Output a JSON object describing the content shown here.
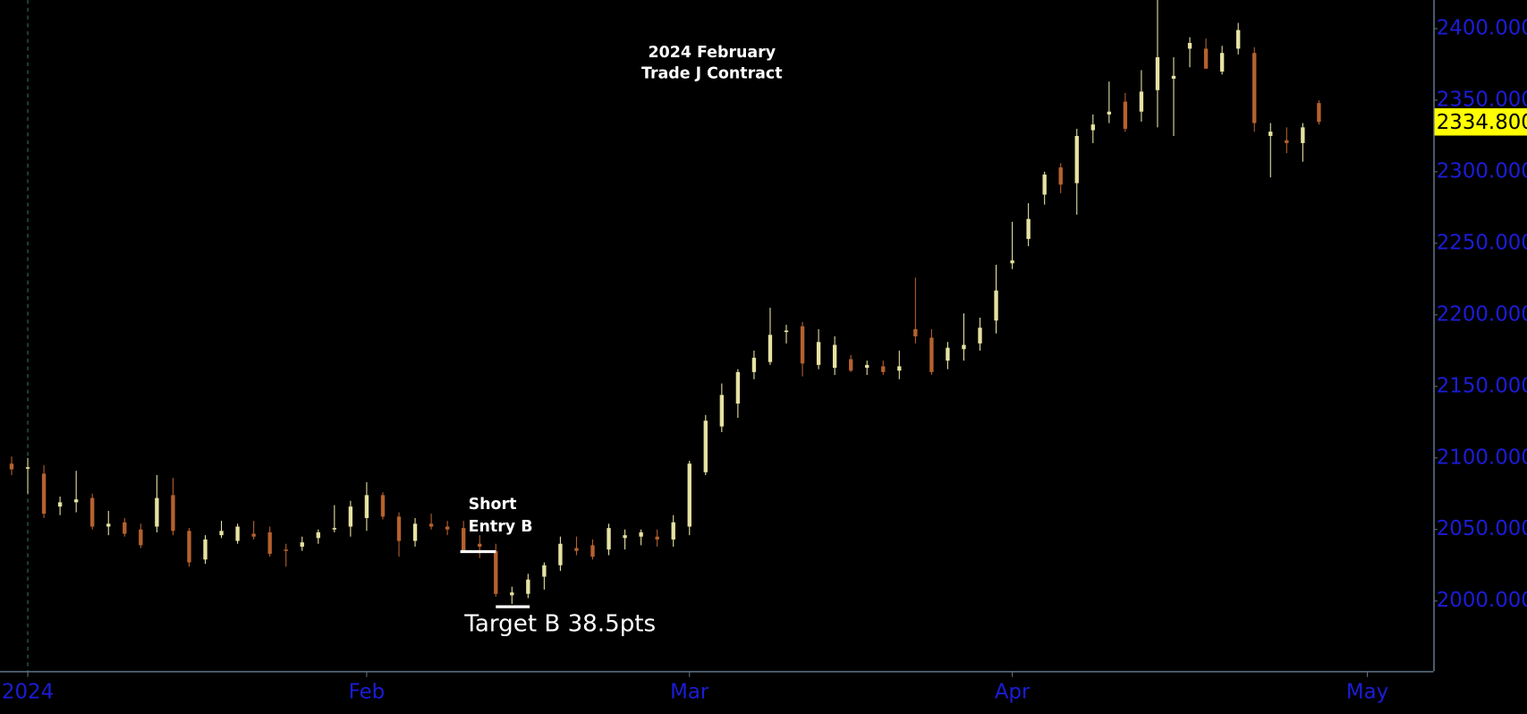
{
  "chart_data": {
    "type": "candlestick",
    "title": "2024 February",
    "subtitle": "Trade J Contract",
    "open": [
      2096,
      2093,
      2089,
      2066,
      2069,
      2072,
      2052,
      2055,
      2050,
      2052,
      2074,
      2049,
      2029,
      2046,
      2042,
      2047,
      2048,
      2036,
      2038,
      2044,
      2050,
      2052,
      2058,
      2074,
      2059,
      2042,
      2054,
      2052,
      2051,
      2040,
      2035,
      2004,
      2005,
      2017,
      2025,
      2037,
      2039,
      2036,
      2044,
      2045,
      2045,
      2043,
      2052,
      2090,
      2122,
      2138,
      2160,
      2167,
      2188,
      2192,
      2165,
      2163,
      2169,
      2163,
      2164,
      2161,
      2190,
      2184,
      2168,
      2176,
      2180,
      2196,
      2236,
      2253,
      2284,
      2303,
      2292,
      2329,
      2340,
      2349,
      2342,
      2357,
      2365,
      2386,
      2386,
      2370,
      2386,
      2383,
      2325,
      2322,
      2320,
      2348
    ],
    "high": [
      2101,
      2100,
      2095,
      2073,
      2091,
      2075,
      2063,
      2058,
      2054,
      2088,
      2086,
      2051,
      2046,
      2056,
      2054,
      2056,
      2052,
      2040,
      2045,
      2050,
      2067,
      2070,
      2083,
      2076,
      2062,
      2058,
      2061,
      2056,
      2056,
      2046,
      2040,
      2010,
      2019,
      2027,
      2045,
      2045,
      2043,
      2054,
      2050,
      2050,
      2050,
      2060,
      2098,
      2130,
      2152,
      2162,
      2175,
      2205,
      2193,
      2195,
      2190,
      2185,
      2172,
      2168,
      2168,
      2175,
      2226,
      2190,
      2181,
      2201,
      2198,
      2235,
      2265,
      2278,
      2300,
      2306,
      2330,
      2340,
      2363,
      2355,
      2371,
      2420,
      2380,
      2394,
      2393,
      2388,
      2404,
      2387,
      2334,
      2331,
      2334,
      2350
    ],
    "low": [
      2088,
      2075,
      2058,
      2060,
      2062,
      2050,
      2046,
      2045,
      2037,
      2048,
      2046,
      2024,
      2026,
      2044,
      2040,
      2043,
      2031,
      2024,
      2035,
      2040,
      2048,
      2045,
      2049,
      2057,
      2031,
      2038,
      2050,
      2046,
      2034,
      2030,
      2003,
      1998,
      2002,
      2008,
      2021,
      2032,
      2029,
      2032,
      2036,
      2039,
      2038,
      2038,
      2046,
      2088,
      2118,
      2128,
      2155,
      2165,
      2180,
      2157,
      2162,
      2158,
      2160,
      2158,
      2158,
      2155,
      2180,
      2158,
      2162,
      2168,
      2175,
      2187,
      2232,
      2248,
      2277,
      2285,
      2270,
      2320,
      2334,
      2328,
      2335,
      2331,
      2325,
      2373,
      2375,
      2368,
      2382,
      2328,
      2296,
      2313,
      2307,
      2333
    ],
    "close": [
      2092,
      2093.5,
      2061,
      2069,
      2071,
      2052,
      2054,
      2047,
      2039,
      2072,
      2049,
      2027,
      2043,
      2049,
      2052,
      2045,
      2033,
      2035,
      2041,
      2048,
      2051,
      2066,
      2074,
      2059,
      2042,
      2054,
      2052,
      2050,
      2035,
      2038,
      2005,
      2006,
      2015,
      2025,
      2040,
      2035,
      2031,
      2051,
      2046,
      2048,
      2043,
      2055,
      2096,
      2126,
      2144,
      2160,
      2170,
      2186,
      2189,
      2166,
      2181,
      2179,
      2161,
      2165,
      2160,
      2164,
      2185,
      2160,
      2177,
      2179,
      2191,
      2217,
      2238,
      2267,
      2298,
      2291,
      2325,
      2333,
      2342,
      2330,
      2356,
      2380,
      2367,
      2390,
      2372,
      2383,
      2399,
      2334,
      2328,
      2320,
      2331,
      2334.8
    ],
    "up_color": "#e6e2a2",
    "down_color": "#b5612e",
    "ylim": [
      1951,
      2420
    ],
    "xlim": [
      -0.72,
      88.1
    ],
    "yticks": [
      {
        "value": 2000,
        "label": "2000.000"
      },
      {
        "value": 2050,
        "label": "2050.000"
      },
      {
        "value": 2100,
        "label": "2100.000"
      },
      {
        "value": 2150,
        "label": "2150.000"
      },
      {
        "value": 2200,
        "label": "2200.000"
      },
      {
        "value": 2250,
        "label": "2250.000"
      },
      {
        "value": 2300,
        "label": "2300.000"
      },
      {
        "value": 2350,
        "label": "2350.000"
      },
      {
        "value": 2400,
        "label": "2400.000"
      }
    ],
    "xticks": [
      {
        "value": 1,
        "label": "2024"
      },
      {
        "value": 22,
        "label": "Feb"
      },
      {
        "value": 42,
        "label": "Mar"
      },
      {
        "value": 62,
        "label": "Apr"
      },
      {
        "value": 84,
        "label": "May"
      }
    ],
    "last_price": {
      "value": 2334.8,
      "label": "2334.800"
    },
    "annotations": {
      "entry": {
        "lines": [
          "Short",
          "Entry B"
        ],
        "level": 2034.5
      },
      "target": {
        "text": "Target B 38.5pts",
        "level": 1996
      }
    }
  }
}
